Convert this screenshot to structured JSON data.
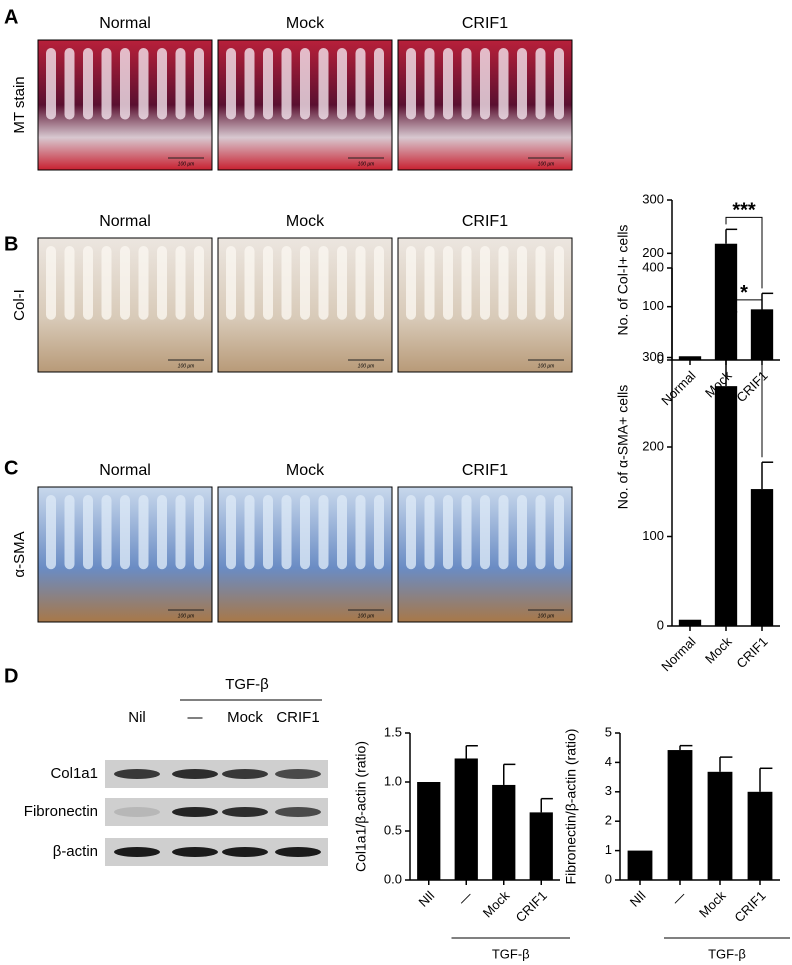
{
  "panels": [
    {
      "label": "A",
      "row_label": "MT stain",
      "columns": [
        "Normal",
        "Mock",
        "CRIF1"
      ],
      "scale_bar": "100 μm"
    },
    {
      "label": "B",
      "row_label": "Col-I",
      "columns": [
        "Normal",
        "Mock",
        "CRIF1"
      ],
      "scale_bar": "100 μm"
    },
    {
      "label": "C",
      "row_label": "α-SMA",
      "columns": [
        "Normal",
        "Mock",
        "CRIF1"
      ],
      "scale_bar": "100 μm"
    },
    {
      "label": "D"
    }
  ],
  "blot": {
    "group_label": "TGF-β",
    "lanes": [
      "Nil",
      "—",
      "Mock",
      "CRIF1"
    ],
    "rows": [
      "Col1a1",
      "Fibronectin",
      "β-actin"
    ]
  },
  "chart_data": [
    {
      "type": "bar",
      "ylabel": "No. of Col-I+ cells",
      "categories": [
        "Normal",
        "Mock",
        "CRIF1"
      ],
      "values": [
        7,
        218,
        95
      ],
      "errors": [
        null,
        27,
        30
      ],
      "color": "#000000",
      "ylim": [
        0,
        300
      ],
      "yticks": [
        0,
        100,
        200,
        300
      ],
      "annotation": "***"
    },
    {
      "type": "bar",
      "ylabel": "No. of α-SMA+ cells",
      "categories": [
        "Normal",
        "Mock",
        "CRIF1"
      ],
      "values": [
        7,
        268,
        153
      ],
      "errors": [
        null,
        83,
        30
      ],
      "color": "#000000",
      "ylim": [
        0,
        400
      ],
      "yticks": [
        0,
        100,
        200,
        300,
        400
      ],
      "annotation": "*"
    },
    {
      "type": "bar",
      "ylabel": "Col1a1/β-actin (ratio)",
      "categories": [
        "NIl",
        "—",
        "Mock",
        "CRIF1"
      ],
      "values": [
        1.0,
        1.24,
        0.97,
        0.69
      ],
      "errors": [
        null,
        0.13,
        0.21,
        0.14
      ],
      "color": "#000000",
      "ylim": [
        0,
        1.5
      ],
      "yticks": [
        {
          "value": 0,
          "label": "0.0"
        },
        0.5,
        {
          "value": 1,
          "label": "1.0"
        },
        1.5
      ],
      "group_label": "TGF-β"
    },
    {
      "type": "bar",
      "ylabel": "Fibronectin/β-actin (ratio)",
      "categories": [
        "NIl",
        "—",
        "Mock",
        "CRIF1"
      ],
      "values": [
        1,
        4.42,
        3.68,
        3.0
      ],
      "errors": [
        null,
        0.15,
        0.5,
        0.8
      ],
      "color": "#000000",
      "ylim": [
        0,
        5
      ],
      "yticks": [
        0,
        1,
        2,
        3,
        4,
        5
      ],
      "group_label": "TGF-β"
    }
  ]
}
